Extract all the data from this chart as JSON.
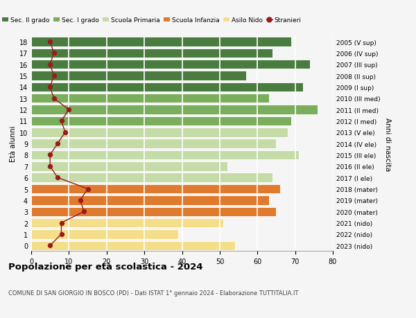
{
  "ages": [
    18,
    17,
    16,
    15,
    14,
    13,
    12,
    11,
    10,
    9,
    8,
    7,
    6,
    5,
    4,
    3,
    2,
    1,
    0
  ],
  "years": [
    "2005 (V sup)",
    "2006 (IV sup)",
    "2007 (III sup)",
    "2008 (II sup)",
    "2009 (I sup)",
    "2010 (III med)",
    "2011 (II med)",
    "2012 (I med)",
    "2013 (V ele)",
    "2014 (IV ele)",
    "2015 (III ele)",
    "2016 (II ele)",
    "2017 (I ele)",
    "2018 (mater)",
    "2019 (mater)",
    "2020 (mater)",
    "2021 (nido)",
    "2022 (nido)",
    "2023 (nido)"
  ],
  "bar_values": [
    69,
    64,
    74,
    57,
    72,
    63,
    76,
    69,
    68,
    65,
    71,
    52,
    64,
    66,
    63,
    65,
    51,
    39,
    54
  ],
  "stranieri": [
    5,
    6,
    5,
    6,
    5,
    6,
    10,
    8,
    9,
    7,
    5,
    5,
    7,
    15,
    13,
    14,
    8,
    8,
    5
  ],
  "categories": {
    "sec2": [
      18,
      17,
      16,
      15,
      14
    ],
    "sec1": [
      13,
      12,
      11
    ],
    "primaria": [
      10,
      9,
      8,
      7,
      6
    ],
    "infanzia": [
      5,
      4,
      3
    ],
    "nido": [
      2,
      1,
      0
    ]
  },
  "colors": {
    "sec2": "#4a7c40",
    "sec1": "#7aad5c",
    "primaria": "#c5dba8",
    "infanzia": "#e07b2e",
    "nido": "#f5de8a",
    "stranieri": "#9b1a1a",
    "stranieri_line": "#9b1a1a"
  },
  "legend_labels": [
    "Sec. II grado",
    "Sec. I grado",
    "Scuola Primaria",
    "Scuola Infanzia",
    "Asilo Nido",
    "Stranieri"
  ],
  "title_main": "Popolazione per età scolastica - 2024",
  "subtitle": "COMUNE DI SAN GIORGIO IN BOSCO (PD) - Dati ISTAT 1° gennaio 2024 - Elaborazione TUTTITALIA.IT",
  "ylabel_left": "Età alunni",
  "ylabel_right": "Anni di nascita",
  "xlim": [
    0,
    80
  ],
  "background_color": "#f5f5f5"
}
